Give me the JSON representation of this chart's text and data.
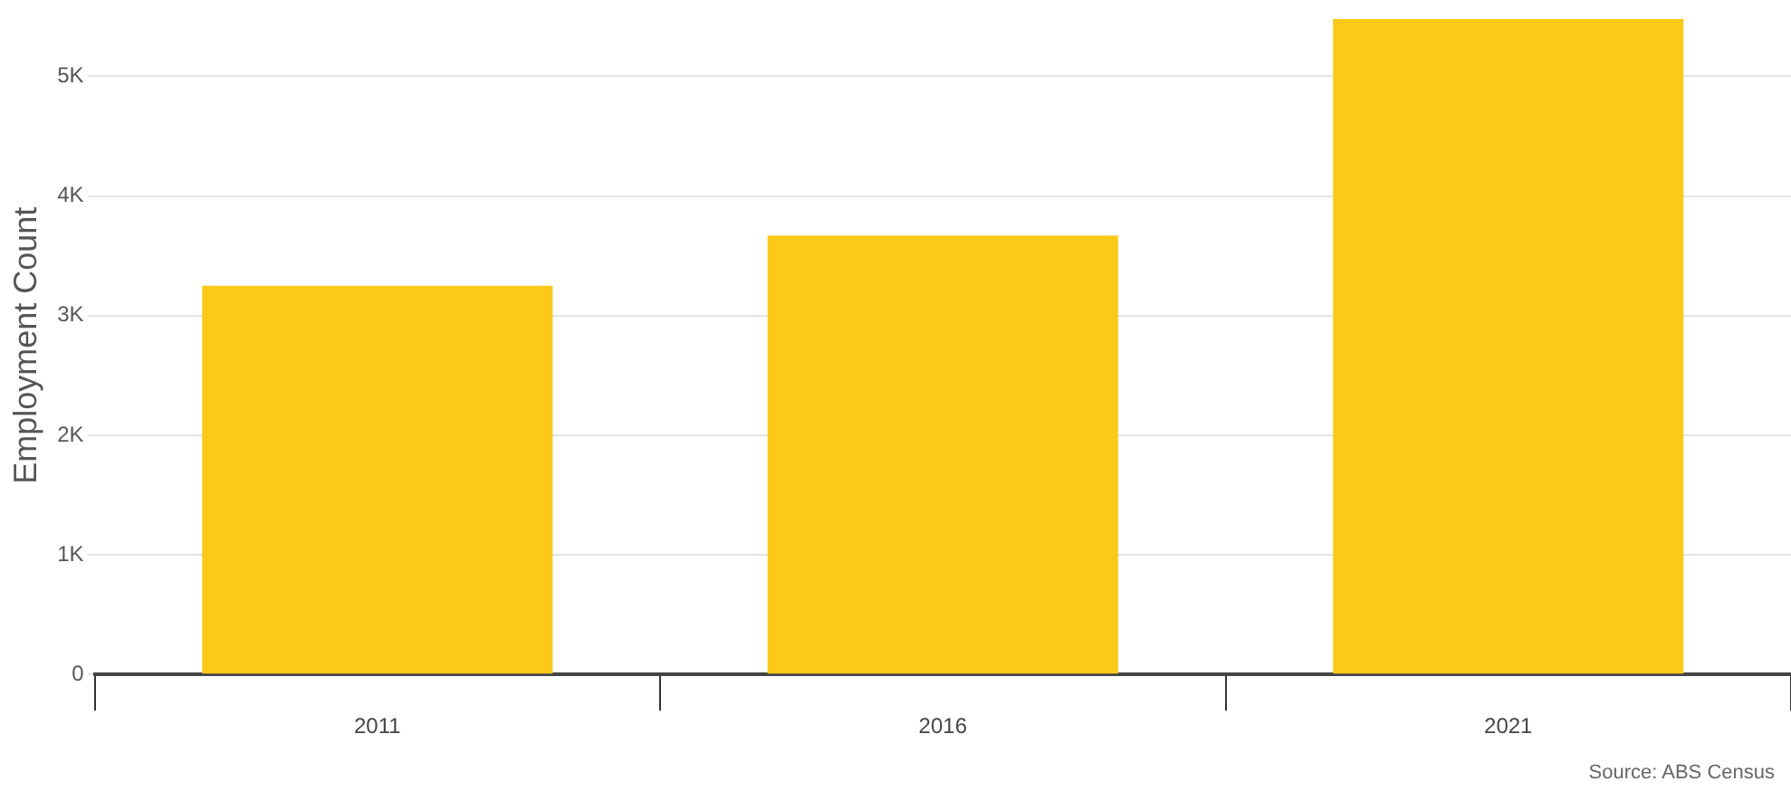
{
  "chart_data": {
    "type": "bar",
    "ylabel": "Employment Count",
    "categories": [
      "2011",
      "2016",
      "2021"
    ],
    "values": [
      3250,
      3670,
      5480
    ],
    "color": "#fcc918",
    "ylim": [
      0,
      5500
    ],
    "yticks": [
      {
        "value": 0,
        "label": "0"
      },
      {
        "value": 1000,
        "label": "1K"
      },
      {
        "value": 2000,
        "label": "2K"
      },
      {
        "value": 3000,
        "label": "3K"
      },
      {
        "value": 4000,
        "label": "4K"
      },
      {
        "value": 5000,
        "label": "5K"
      }
    ],
    "grid": "y",
    "legend": false,
    "annotations": [
      "Source: ABS Census"
    ]
  }
}
